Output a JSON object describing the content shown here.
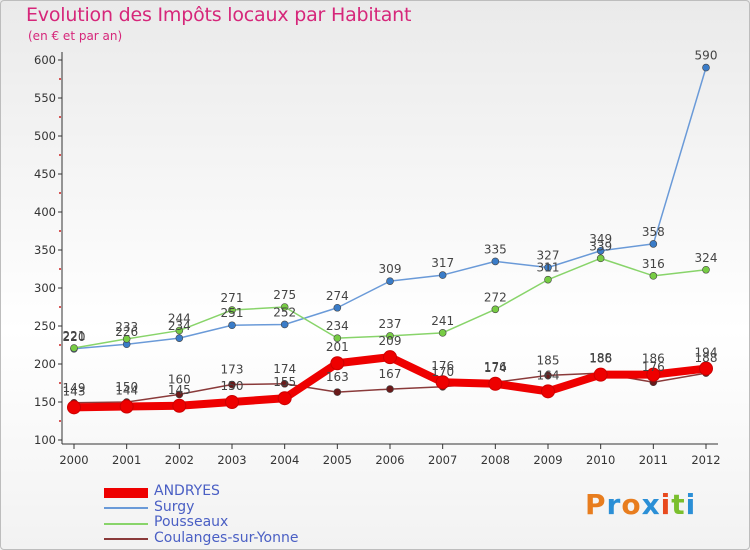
{
  "chart_data": {
    "type": "line",
    "title": "Evolution des Impôts locaux par Habitant",
    "subtitle": "(en € et par an)",
    "xlabel": "",
    "ylabel": "",
    "ylim": [
      100,
      600
    ],
    "yticks": [
      100,
      150,
      200,
      250,
      300,
      350,
      400,
      450,
      500,
      550,
      600
    ],
    "categories": [
      "2000",
      "2001",
      "2002",
      "2003",
      "2004",
      "2005",
      "2006",
      "2007",
      "2008",
      "2009",
      "2010",
      "2011",
      "2012"
    ],
    "grid": false,
    "legend_position": "bottom-left",
    "series": [
      {
        "name": "ANDRYES",
        "color": "#ee0000",
        "emphasis": true,
        "values": [
          143,
          144,
          145,
          150,
          155,
          201,
          209,
          176,
          174,
          164,
          186,
          186,
          194
        ]
      },
      {
        "name": "Surgy",
        "color": "#6a9ad8",
        "point_color": "#3a7cc8",
        "values": [
          220,
          226,
          234,
          251,
          252,
          274,
          309,
          317,
          335,
          327,
          349,
          358,
          590
        ]
      },
      {
        "name": "Pousseaux",
        "color": "#88d46a",
        "point_color": "#77cc44",
        "values": [
          221,
          233,
          244,
          271,
          275,
          234,
          237,
          241,
          272,
          311,
          339,
          316,
          324
        ]
      },
      {
        "name": "Coulanges-sur-Yonne",
        "color": "#8a3a3a",
        "point_color": "#6a1a1a",
        "values": [
          149,
          150,
          160,
          173,
          174,
          163,
          167,
          170,
          176,
          185,
          188,
          176,
          188
        ]
      }
    ]
  },
  "logo": {
    "letters": [
      "P",
      "r",
      "o",
      "x",
      "i",
      "t",
      "i"
    ],
    "colors": [
      "#e87d1e",
      "#2b8fd6",
      "#e87d1e",
      "#2b8fd6",
      "#e84a1e",
      "#7bbf2e",
      "#2b8fd6"
    ]
  }
}
